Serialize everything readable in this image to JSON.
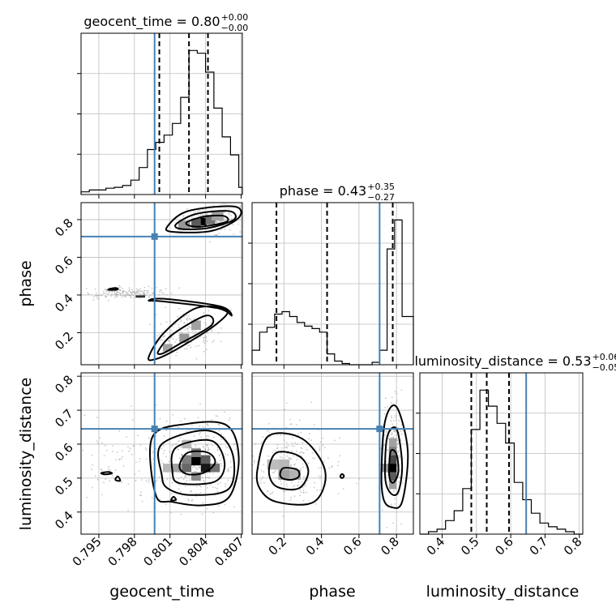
{
  "chart_data": {
    "type": "corner",
    "parameters": [
      "geocent_time",
      "phase",
      "luminosity_distance"
    ],
    "axis_labels": {
      "geocent_time": "geocent_time",
      "phase": "phase",
      "luminosity_distance": "luminosity_distance"
    },
    "ranges": {
      "geocent_time": [
        0.7935,
        0.8071
      ],
      "phase": [
        0.03,
        0.89
      ],
      "luminosity_distance": [
        0.335,
        0.81
      ]
    },
    "ticks": {
      "geocent_time": {
        "values": [
          0.795,
          0.798,
          0.801,
          0.804,
          0.807
        ],
        "labels": [
          "0.795",
          "0.798",
          "0.801",
          "0.804",
          "0.807"
        ]
      },
      "phase_y": {
        "values": [
          0.2,
          0.4,
          0.6,
          0.8
        ],
        "labels": [
          "0.2",
          "0.4",
          "0.6",
          "0.8"
        ]
      },
      "phase_x": {
        "values": [
          0.2,
          0.4,
          0.6,
          0.8
        ],
        "labels": [
          "0.2",
          "0.4",
          "0.6",
          "0.8"
        ]
      },
      "luminosity_distance_y": {
        "values": [
          0.4,
          0.5,
          0.6,
          0.7,
          0.8
        ],
        "labels": [
          "0.4",
          "0.5",
          "0.6",
          "0.7",
          "0.8"
        ]
      },
      "luminosity_distance_x": {
        "values": [
          0.4,
          0.5,
          0.6,
          0.7,
          0.8
        ],
        "labels": [
          "0.4",
          "0.5",
          "0.6",
          "0.7",
          "0.8"
        ]
      }
    },
    "truth": {
      "geocent_time": 0.7997,
      "phase": 0.71,
      "luminosity_distance": 0.645
    },
    "quantiles": {
      "geocent_time": [
        0.8001,
        0.8026,
        0.8042
      ],
      "phase": [
        0.16,
        0.43,
        0.78
      ],
      "luminosity_distance": [
        0.485,
        0.53,
        0.595
      ]
    },
    "titles": {
      "geocent_time": {
        "main": "geocent_time = 0.80",
        "sup": "+0.00",
        "sub": "−0.00"
      },
      "phase": {
        "main": "phase = 0.43",
        "sup": "+0.35",
        "sub": "−0.27"
      },
      "luminosity_distance": {
        "main": "luminosity_distance = 0.53",
        "sup": "+0.06",
        "sub": "−0.05"
      }
    },
    "histograms": {
      "geocent_time": {
        "edges": [
          0.7935,
          0.7942,
          0.7949,
          0.7956,
          0.7963,
          0.797,
          0.7977,
          0.7984,
          0.7991,
          0.7998,
          0.8005,
          0.8012,
          0.8019,
          0.8026,
          0.8033,
          0.804,
          0.8047,
          0.8054,
          0.8061,
          0.8068,
          0.8071
        ],
        "counts": [
          3,
          5,
          5,
          7,
          8,
          10,
          16,
          30,
          50,
          58,
          66,
          79,
          108,
          160,
          157,
          136,
          96,
          64,
          44,
          8
        ]
      },
      "phase": {
        "edges": [
          0.03,
          0.07,
          0.11,
          0.15,
          0.19,
          0.23,
          0.27,
          0.31,
          0.35,
          0.39,
          0.43,
          0.47,
          0.51,
          0.55,
          0.59,
          0.63,
          0.67,
          0.71,
          0.75,
          0.79,
          0.83,
          0.89
        ],
        "counts": [
          12,
          27,
          31,
          42,
          44,
          40,
          35,
          32,
          30,
          27,
          9,
          3,
          1,
          0,
          0,
          0,
          2,
          12,
          96,
          120,
          40
        ]
      },
      "luminosity_distance": {
        "edges": [
          0.335,
          0.36,
          0.385,
          0.41,
          0.435,
          0.46,
          0.485,
          0.51,
          0.535,
          0.56,
          0.585,
          0.61,
          0.635,
          0.66,
          0.685,
          0.71,
          0.735,
          0.76,
          0.785,
          0.81
        ],
        "counts": [
          0,
          2,
          4,
          11,
          19,
          37,
          85,
          117,
          104,
          90,
          74,
          42,
          28,
          17,
          9,
          6,
          4,
          2,
          0
        ]
      }
    },
    "contours_2d": {
      "geocent_time_vs_phase": [
        [
          [
            0.8024,
            0.785
          ],
          [
            0.8038,
            0.815
          ],
          [
            0.8055,
            0.82
          ],
          [
            0.8058,
            0.79
          ],
          [
            0.804,
            0.765
          ],
          [
            0.8028,
            0.765
          ]
        ],
        [
          [
            0.8015,
            0.775
          ],
          [
            0.8032,
            0.83
          ],
          [
            0.806,
            0.845
          ],
          [
            0.8064,
            0.8
          ],
          [
            0.8042,
            0.755
          ],
          [
            0.802,
            0.75
          ]
        ],
        [
          [
            0.8008,
            0.765
          ],
          [
            0.8025,
            0.845
          ],
          [
            0.8064,
            0.87
          ],
          [
            0.8068,
            0.81
          ],
          [
            0.8045,
            0.74
          ],
          [
            0.8012,
            0.735
          ]
        ],
        [
          [
            0.8,
            0.1
          ],
          [
            0.8012,
            0.19
          ],
          [
            0.804,
            0.29
          ],
          [
            0.8045,
            0.24
          ],
          [
            0.8018,
            0.14
          ],
          [
            0.8004,
            0.09
          ]
        ],
        [
          [
            0.7992,
            0.07
          ],
          [
            0.8005,
            0.2
          ],
          [
            0.8032,
            0.33
          ],
          [
            0.8058,
            0.32
          ],
          [
            0.8048,
            0.24
          ],
          [
            0.8015,
            0.11
          ],
          [
            0.7998,
            0.06
          ]
        ],
        [
          [
            0.7992,
            0.37
          ],
          [
            0.8005,
            0.38
          ],
          [
            0.8052,
            0.34
          ],
          [
            0.8062,
            0.29
          ],
          [
            0.805,
            0.33
          ],
          [
            0.8004,
            0.366
          ]
        ],
        [
          [
            0.7958,
            0.43
          ],
          [
            0.7964,
            0.437
          ],
          [
            0.7966,
            0.43
          ],
          [
            0.796,
            0.427
          ]
        ]
      ],
      "geocent_time_vs_luminosity_distance": [
        [
          [
            0.8018,
            0.535
          ],
          [
            0.8025,
            0.575
          ],
          [
            0.8042,
            0.575
          ],
          [
            0.8048,
            0.545
          ],
          [
            0.8038,
            0.515
          ],
          [
            0.8024,
            0.512
          ]
        ],
        [
          [
            0.8012,
            0.52
          ],
          [
            0.8015,
            0.59
          ],
          [
            0.8045,
            0.61
          ],
          [
            0.8056,
            0.545
          ],
          [
            0.8048,
            0.49
          ],
          [
            0.8018,
            0.485
          ]
        ],
        [
          [
            0.8003,
            0.51
          ],
          [
            0.8003,
            0.6
          ],
          [
            0.8042,
            0.64
          ],
          [
            0.8062,
            0.58
          ],
          [
            0.806,
            0.47
          ],
          [
            0.8028,
            0.45
          ],
          [
            0.8008,
            0.47
          ]
        ],
        [
          [
            0.7998,
            0.45
          ],
          [
            0.7995,
            0.62
          ],
          [
            0.8025,
            0.66
          ],
          [
            0.8058,
            0.655
          ],
          [
            0.8068,
            0.56
          ],
          [
            0.806,
            0.445
          ],
          [
            0.8038,
            0.42
          ],
          [
            0.8012,
            0.43
          ]
        ],
        [
          [
            0.7952,
            0.515
          ],
          [
            0.7958,
            0.518
          ],
          [
            0.7961,
            0.514
          ],
          [
            0.7955,
            0.511
          ]
        ],
        [
          [
            0.7964,
            0.495
          ],
          [
            0.7966,
            0.505
          ],
          [
            0.7968,
            0.492
          ]
        ],
        [
          [
            0.8011,
            0.435
          ],
          [
            0.8013,
            0.445
          ],
          [
            0.8015,
            0.436
          ]
        ]
      ],
      "phase_vs_luminosity_distance": [
        [
          [
            0.18,
            0.515
          ],
          [
            0.2,
            0.53
          ],
          [
            0.27,
            0.525
          ],
          [
            0.28,
            0.505
          ],
          [
            0.24,
            0.495
          ],
          [
            0.19,
            0.5
          ]
        ],
        [
          [
            0.12,
            0.52
          ],
          [
            0.16,
            0.575
          ],
          [
            0.28,
            0.565
          ],
          [
            0.33,
            0.52
          ],
          [
            0.28,
            0.47
          ],
          [
            0.16,
            0.475
          ]
        ],
        [
          [
            0.06,
            0.53
          ],
          [
            0.12,
            0.625
          ],
          [
            0.3,
            0.615
          ],
          [
            0.42,
            0.52
          ],
          [
            0.36,
            0.43
          ],
          [
            0.16,
            0.43
          ],
          [
            0.07,
            0.47
          ]
        ],
        [
          [
            0.76,
            0.52
          ],
          [
            0.77,
            0.58
          ],
          [
            0.8,
            0.57
          ],
          [
            0.81,
            0.52
          ],
          [
            0.79,
            0.49
          ],
          [
            0.77,
            0.49
          ]
        ],
        [
          [
            0.74,
            0.5
          ],
          [
            0.75,
            0.62
          ],
          [
            0.8,
            0.645
          ],
          [
            0.83,
            0.54
          ],
          [
            0.81,
            0.46
          ],
          [
            0.77,
            0.455
          ]
        ],
        [
          [
            0.72,
            0.52
          ],
          [
            0.74,
            0.67
          ],
          [
            0.8,
            0.71
          ],
          [
            0.86,
            0.58
          ],
          [
            0.83,
            0.43
          ],
          [
            0.77,
            0.415
          ],
          [
            0.73,
            0.44
          ]
        ],
        [
          [
            0.5,
            0.505
          ],
          [
            0.51,
            0.512
          ],
          [
            0.52,
            0.506
          ],
          [
            0.51,
            0.5
          ]
        ]
      ]
    },
    "density_cells": {
      "geocent_time_vs_phase": [
        {
          "x": 0.8038,
          "y": 0.79,
          "w": 0.0006,
          "h": 0.04,
          "v": 1.0
        },
        {
          "x": 0.8032,
          "y": 0.78,
          "w": 0.0008,
          "h": 0.05,
          "v": 0.6
        },
        {
          "x": 0.8044,
          "y": 0.8,
          "w": 0.0008,
          "h": 0.05,
          "v": 0.5
        },
        {
          "x": 0.8022,
          "y": 0.77,
          "w": 0.001,
          "h": 0.05,
          "v": 0.35
        },
        {
          "x": 0.805,
          "y": 0.82,
          "w": 0.001,
          "h": 0.05,
          "v": 0.3
        },
        {
          "x": 0.8022,
          "y": 0.17,
          "w": 0.0008,
          "h": 0.05,
          "v": 0.35
        },
        {
          "x": 0.8032,
          "y": 0.24,
          "w": 0.0008,
          "h": 0.05,
          "v": 0.3
        },
        {
          "x": 0.8008,
          "y": 0.12,
          "w": 0.0008,
          "h": 0.04,
          "v": 0.3
        },
        {
          "x": 0.7962,
          "y": 0.432,
          "w": 0.0006,
          "h": 0.012,
          "v": 0.8
        },
        {
          "x": 0.7985,
          "y": 0.392,
          "w": 0.0008,
          "h": 0.012,
          "v": 0.8
        }
      ],
      "geocent_time_vs_luminosity_distance": [
        {
          "x": 0.8032,
          "y": 0.55,
          "w": 0.0008,
          "h": 0.025,
          "v": 1.0
        },
        {
          "x": 0.804,
          "y": 0.53,
          "w": 0.0008,
          "h": 0.025,
          "v": 0.9
        },
        {
          "x": 0.8024,
          "y": 0.53,
          "w": 0.0008,
          "h": 0.025,
          "v": 0.55
        },
        {
          "x": 0.804,
          "y": 0.555,
          "w": 0.0008,
          "h": 0.025,
          "v": 0.6
        },
        {
          "x": 0.8032,
          "y": 0.575,
          "w": 0.0008,
          "h": 0.025,
          "v": 0.45
        },
        {
          "x": 0.8024,
          "y": 0.555,
          "w": 0.0008,
          "h": 0.025,
          "v": 0.45
        },
        {
          "x": 0.8048,
          "y": 0.53,
          "w": 0.0008,
          "h": 0.025,
          "v": 0.5
        },
        {
          "x": 0.8016,
          "y": 0.53,
          "w": 0.0008,
          "h": 0.025,
          "v": 0.3
        },
        {
          "x": 0.8008,
          "y": 0.53,
          "w": 0.0008,
          "h": 0.025,
          "v": 0.2
        },
        {
          "x": 0.8032,
          "y": 0.505,
          "w": 0.0008,
          "h": 0.025,
          "v": 0.4
        },
        {
          "x": 0.8024,
          "y": 0.6,
          "w": 0.0008,
          "h": 0.025,
          "v": 0.2
        }
      ],
      "phase_vs_luminosity_distance": [
        {
          "x": 0.78,
          "y": 0.53,
          "w": 0.04,
          "h": 0.025,
          "v": 1.0
        },
        {
          "x": 0.78,
          "y": 0.555,
          "w": 0.04,
          "h": 0.025,
          "v": 0.7
        },
        {
          "x": 0.78,
          "y": 0.505,
          "w": 0.04,
          "h": 0.025,
          "v": 0.6
        },
        {
          "x": 0.78,
          "y": 0.58,
          "w": 0.04,
          "h": 0.025,
          "v": 0.45
        },
        {
          "x": 0.78,
          "y": 0.605,
          "w": 0.04,
          "h": 0.025,
          "v": 0.3
        },
        {
          "x": 0.74,
          "y": 0.53,
          "w": 0.04,
          "h": 0.025,
          "v": 0.35
        },
        {
          "x": 0.78,
          "y": 0.48,
          "w": 0.04,
          "h": 0.025,
          "v": 0.3
        },
        {
          "x": 0.2,
          "y": 0.51,
          "w": 0.06,
          "h": 0.03,
          "v": 0.3
        },
        {
          "x": 0.26,
          "y": 0.51,
          "w": 0.06,
          "h": 0.03,
          "v": 0.22
        },
        {
          "x": 0.14,
          "y": 0.54,
          "w": 0.06,
          "h": 0.03,
          "v": 0.18
        },
        {
          "x": 0.2,
          "y": 0.54,
          "w": 0.06,
          "h": 0.03,
          "v": 0.2
        }
      ]
    },
    "sample_clouds": {
      "geocent_time_vs_phase": [
        {
          "cx": 0.8045,
          "cy": 0.8,
          "sx": 0.0012,
          "sy": 0.04,
          "n": 180
        },
        {
          "cx": 0.8025,
          "cy": 0.2,
          "sx": 0.0015,
          "sy": 0.06,
          "n": 160
        },
        {
          "cx": 0.7975,
          "cy": 0.41,
          "sx": 0.0018,
          "sy": 0.015,
          "n": 160
        }
      ],
      "geocent_time_vs_luminosity_distance": [
        {
          "cx": 0.8035,
          "cy": 0.545,
          "sx": 0.0018,
          "sy": 0.06,
          "n": 320
        },
        {
          "cx": 0.797,
          "cy": 0.55,
          "sx": 0.0018,
          "sy": 0.07,
          "n": 90
        }
      ],
      "phase_vs_luminosity_distance": [
        {
          "cx": 0.24,
          "cy": 0.54,
          "sx": 0.12,
          "sy": 0.06,
          "n": 240
        },
        {
          "cx": 0.78,
          "cy": 0.56,
          "sx": 0.025,
          "sy": 0.07,
          "n": 200
        }
      ]
    }
  }
}
